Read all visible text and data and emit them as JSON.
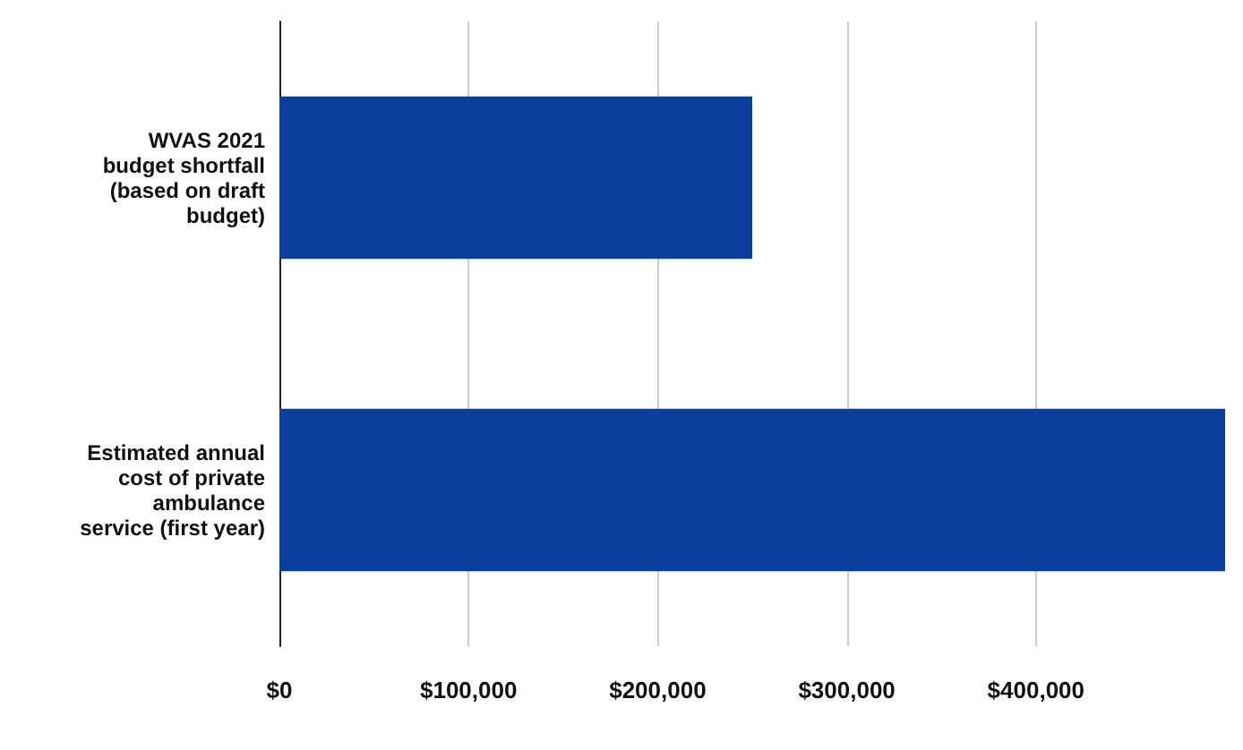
{
  "chart_data": {
    "type": "bar",
    "orientation": "horizontal",
    "categories": [
      "WVAS 2021\nbudget shortfall\n(based on draft\nbudget)",
      "Estimated annual\ncost of private\nambulance\nservice (first year)"
    ],
    "values": [
      250000,
      500000
    ],
    "color": "#0a3f9e",
    "xlim": [
      0,
      500000
    ],
    "xticks": [
      {
        "value": 0,
        "label": "$0"
      },
      {
        "value": 100000,
        "label": "$100,000"
      },
      {
        "value": 200000,
        "label": "$200,000"
      },
      {
        "value": 300000,
        "label": "$300,000"
      },
      {
        "value": 400000,
        "label": "$400,000"
      }
    ],
    "grid": "x"
  }
}
